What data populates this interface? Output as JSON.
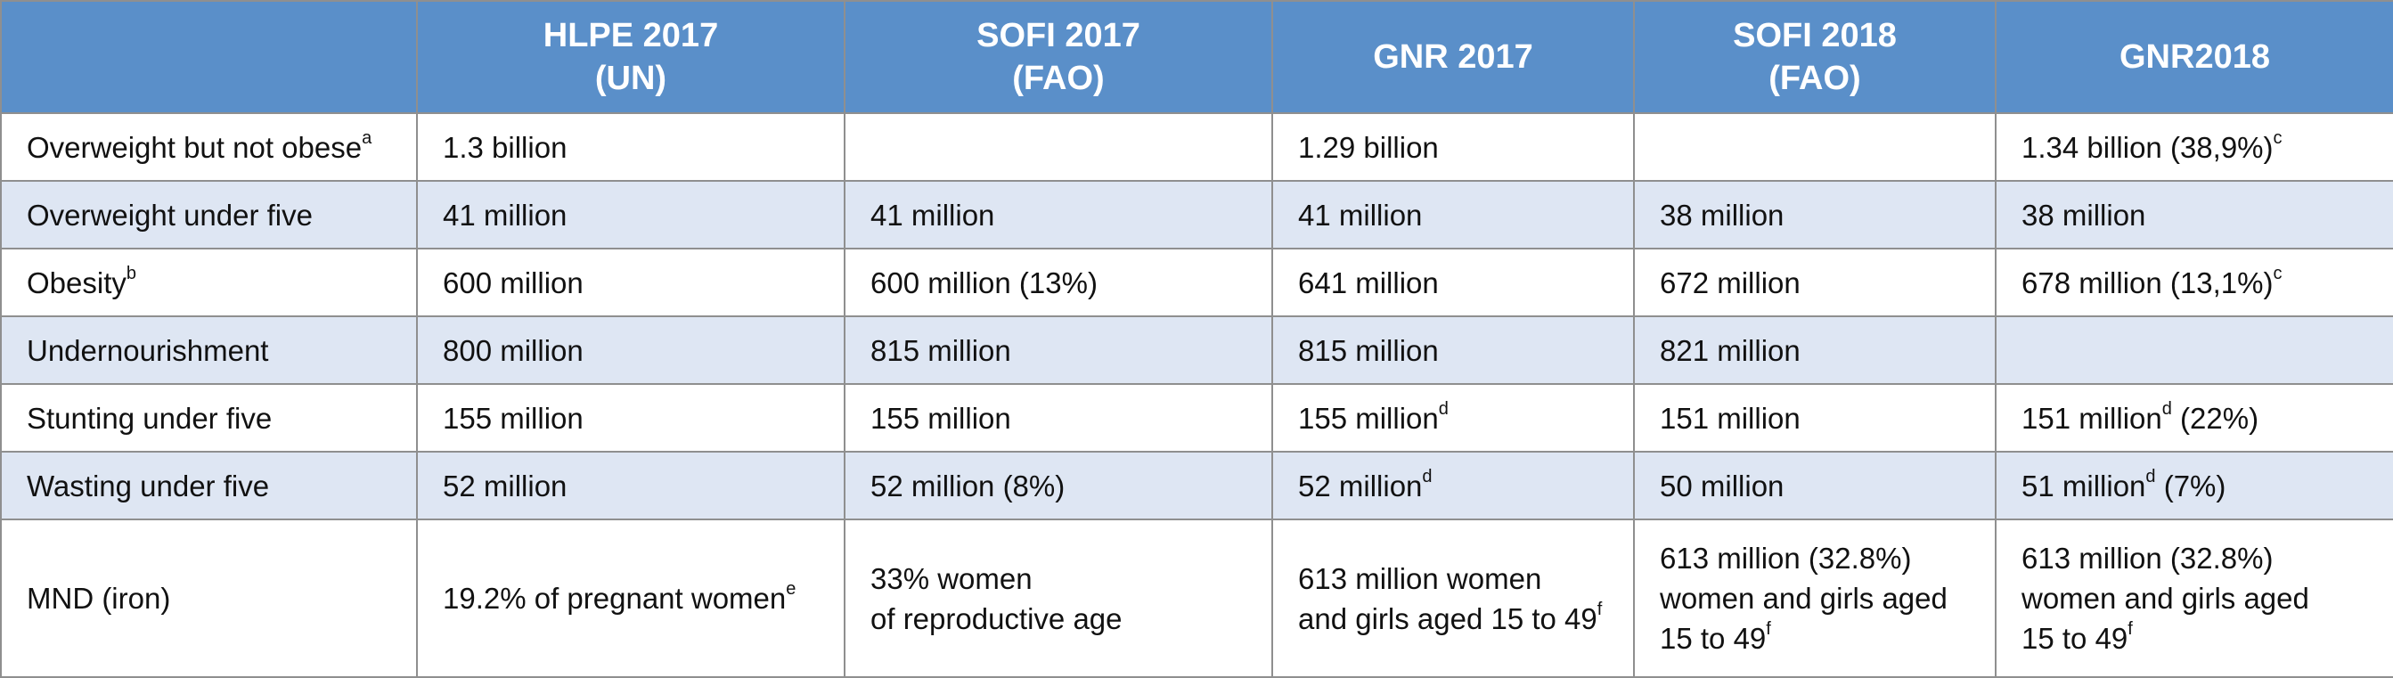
{
  "header": {
    "empty": "",
    "cols": [
      {
        "line1": "HLPE 2017",
        "line2": "(UN)"
      },
      {
        "line1": "SOFI 2017",
        "line2": "(FAO)"
      },
      {
        "line1": "GNR 2017",
        "line2": ""
      },
      {
        "line1": "SOFI 2018",
        "line2": "(FAO)"
      },
      {
        "line1": "GNR2018",
        "line2": ""
      }
    ]
  },
  "rows": [
    {
      "label": "Overweight but not obese",
      "label_sup": "a",
      "c1": "1.3 billion",
      "c2": "",
      "c3": "1.29 billion",
      "c4": "",
      "c5": "1.34 billion (38,9%)",
      "c5_sup": "c"
    },
    {
      "label": "Overweight under five",
      "c1": "41 million",
      "c2": "41 million",
      "c3": "41 million",
      "c4": "38 million",
      "c5": "38 million"
    },
    {
      "label": "Obesity",
      "label_sup": "b",
      "c1": "600 million",
      "c2": "600 million (13%)",
      "c3": "641 million",
      "c4": "672 million",
      "c5": "678 million (13,1%)",
      "c5_sup": "c"
    },
    {
      "label": "Undernourishment",
      "c1": "800 million",
      "c2": "815 million",
      "c3": "815 million",
      "c4": "821 million",
      "c5": ""
    },
    {
      "label": "Stunting under five",
      "c1": "155 million",
      "c2": "155 million",
      "c3": "155 million",
      "c3_sup": "d",
      "c4": "151 million",
      "c5a": "151 million",
      "c5_sup": "d",
      "c5b": " (22%)"
    },
    {
      "label": "Wasting under five",
      "c1": "52 million",
      "c2": "52 million (8%)",
      "c3": "52 million",
      "c3_sup": "d",
      "c4": "50 million",
      "c5a": "51 million",
      "c5_sup": "d",
      "c5b": " (7%)"
    },
    {
      "label": "MND (iron)",
      "c1": "19.2% of pregnant women",
      "c1_sup": "e",
      "c2_l1": "33% women",
      "c2_l2": "of reproductive age",
      "c3_l1": "613 million women",
      "c3_l2": "and girls aged 15 to 49",
      "c3_sup": "f",
      "c4_l1": "613 million (32.8%)",
      "c4_l2": "women and girls aged",
      "c4_l3": "15 to 49",
      "c4_sup": "f",
      "c5_l1": "613 million (32.8%)",
      "c5_l2": "women and girls aged",
      "c5_l3": "15 to 49",
      "c5_sup": "f"
    }
  ]
}
